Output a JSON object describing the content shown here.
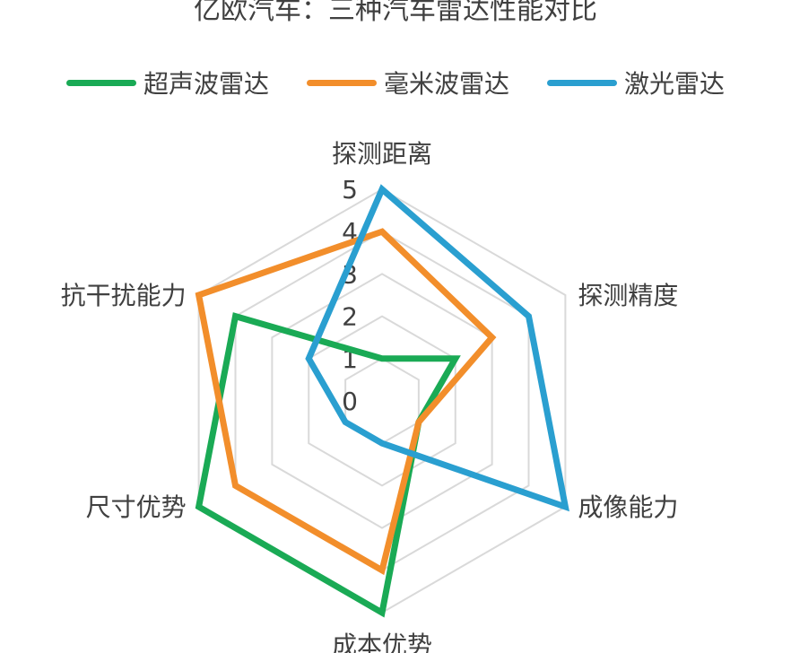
{
  "chart_data": {
    "type": "radar",
    "title": "亿欧汽车：三种汽车雷达性能对比",
    "axes": [
      "探测距离",
      "探测精度",
      "成像能力",
      "成本优势",
      "尺寸优势",
      "抗干扰能力"
    ],
    "ticks": [
      "0",
      "1",
      "2",
      "3",
      "4",
      "5"
    ],
    "range": [
      0,
      5
    ],
    "legend_position": "top",
    "series": [
      {
        "name": "超声波雷达",
        "color": "#1aaa55",
        "values": [
          1,
          2,
          1,
          5,
          5,
          4
        ]
      },
      {
        "name": "毫米波雷达",
        "color": "#f28e2b",
        "values": [
          4,
          3,
          1,
          4,
          4,
          5
        ]
      },
      {
        "name": "激光雷达",
        "color": "#2a9fd0",
        "values": [
          5,
          4,
          5,
          1,
          1,
          2
        ]
      }
    ]
  }
}
